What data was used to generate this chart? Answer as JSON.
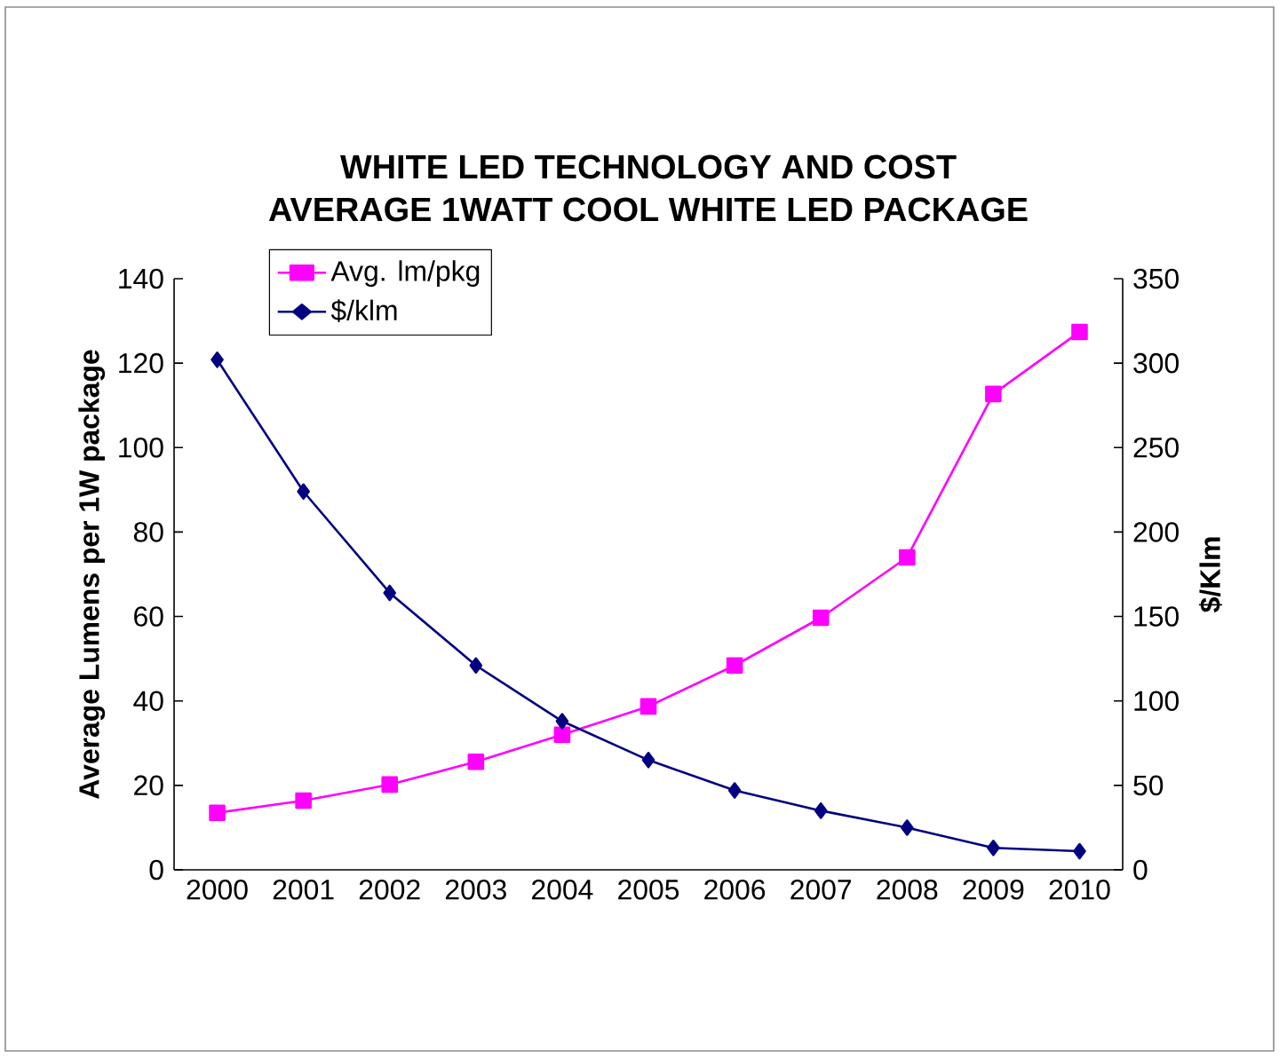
{
  "chart_data": {
    "type": "line",
    "title": "WHITE LED TECHNOLOGY AND COST",
    "subtitle": "AVERAGE 1WATT COOL WHITE LED PACKAGE",
    "ylabel": "Average Lumens per 1W package",
    "y2label": "$/Klm",
    "categories": [
      "2000",
      "2001",
      "2002",
      "2003",
      "2004",
      "2005",
      "2006",
      "2007",
      "2008",
      "2009",
      "2010"
    ],
    "series": [
      {
        "name": "Avg. lm/pkg",
        "color": "#ff00ff",
        "marker": "square",
        "values": [
          13.5,
          16.4,
          20.2,
          25.6,
          32,
          38.7,
          48.4,
          59.7,
          74,
          112.7,
          127.4
        ]
      },
      {
        "name": "$/klm",
        "color": "#000080",
        "marker": "diamond",
        "axis": "y2",
        "values": [
          302,
          224,
          164,
          121,
          88,
          65,
          47,
          35,
          25,
          13,
          11
        ]
      }
    ],
    "ylim": [
      0,
      140
    ],
    "yticks": [
      0,
      20,
      40,
      60,
      80,
      100,
      120,
      140
    ],
    "y2lim": [
      0,
      350
    ],
    "y2ticks": [
      0,
      50,
      100,
      150,
      200,
      250,
      300,
      350
    ],
    "legend": "top left",
    "line_style": "solid"
  }
}
